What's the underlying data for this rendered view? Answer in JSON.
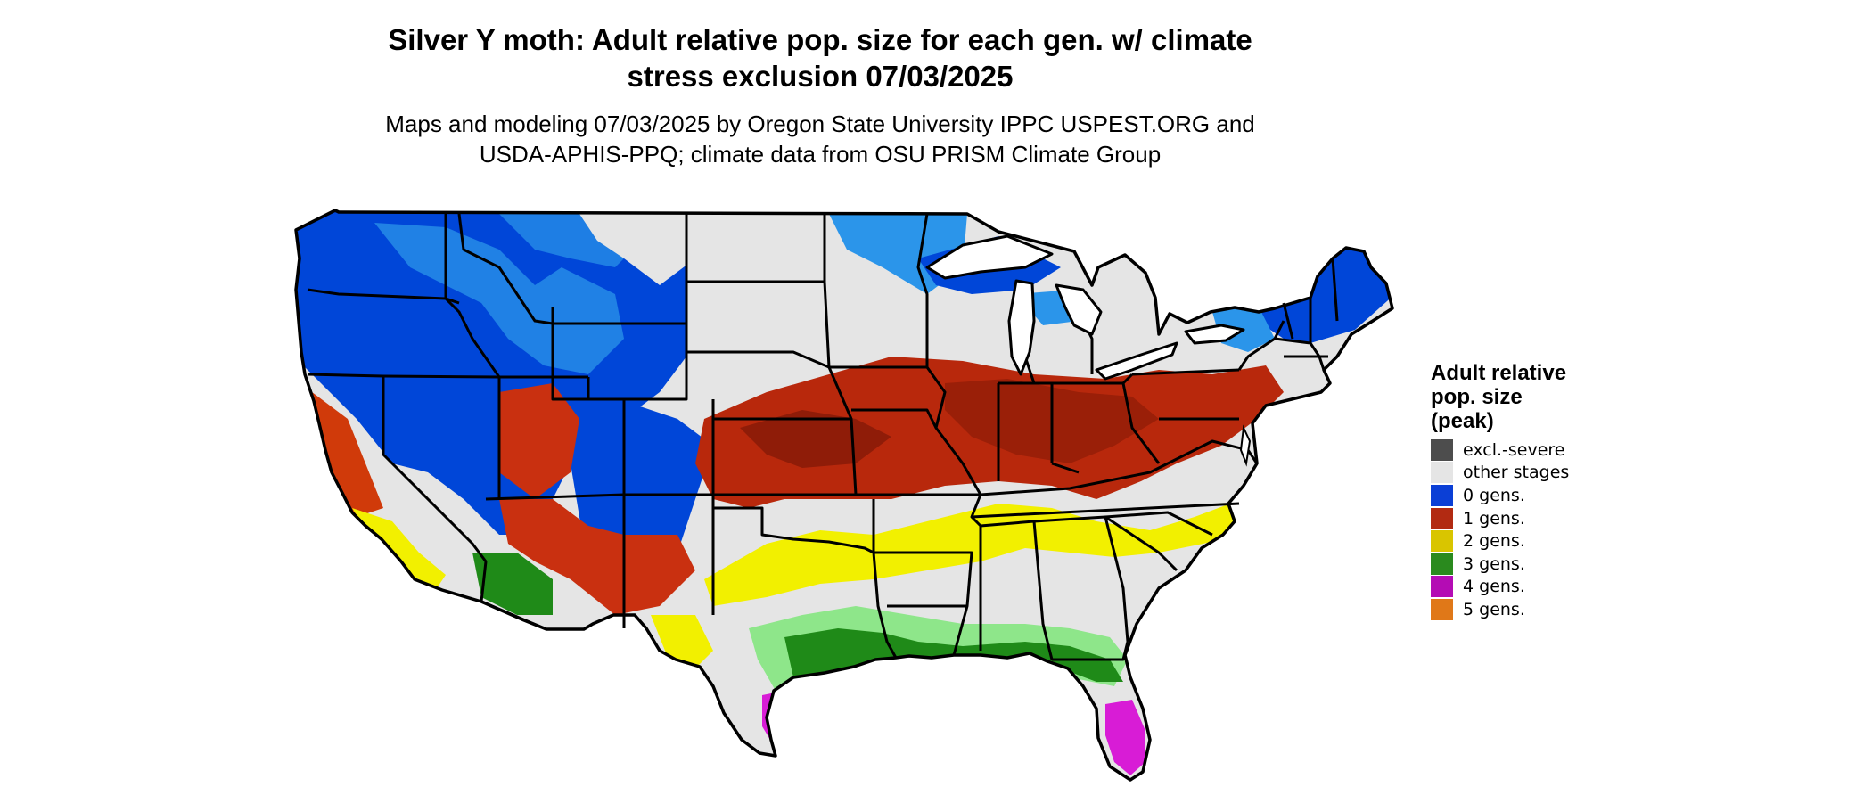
{
  "title": {
    "line1": "Silver Y moth: Adult relative pop. size for each gen. w/ climate",
    "line2": "stress exclusion 07/03/2025"
  },
  "subtitle": {
    "line1": "Maps and modeling 07/03/2025 by Oregon State University IPPC USPEST.ORG and",
    "line2": "USDA-APHIS-PPQ; climate data from OSU PRISM Climate Group"
  },
  "legend": {
    "title_line1": "Adult relative",
    "title_line2": "pop. size",
    "title_line3": "(peak)",
    "items": [
      {
        "label": "excl.-severe",
        "color": "#4d4d4d"
      },
      {
        "label": "other stages",
        "color": "#e5e5e5"
      },
      {
        "label": "0 gens.",
        "color": "#0b3fd6"
      },
      {
        "label": "1 gens.",
        "color": "#b22a12"
      },
      {
        "label": "2 gens.",
        "color": "#d9c500"
      },
      {
        "label": "3 gens.",
        "color": "#2a8a1e"
      },
      {
        "label": "4 gens.",
        "color": "#b40cb4"
      },
      {
        "label": "5 gens.",
        "color": "#e07818"
      }
    ]
  },
  "colors": {
    "background": "#e5e5e5",
    "zero_dark": "#0046d8",
    "zero_light": "#2b95ea",
    "one_dark": "#8f1c08",
    "one_bright": "#e04405",
    "two": "#f2f000",
    "three": "#1f8a18",
    "three_light": "#8ee68a",
    "four": "#d81cd6",
    "five": "#e07818",
    "state_line": "#000000"
  }
}
